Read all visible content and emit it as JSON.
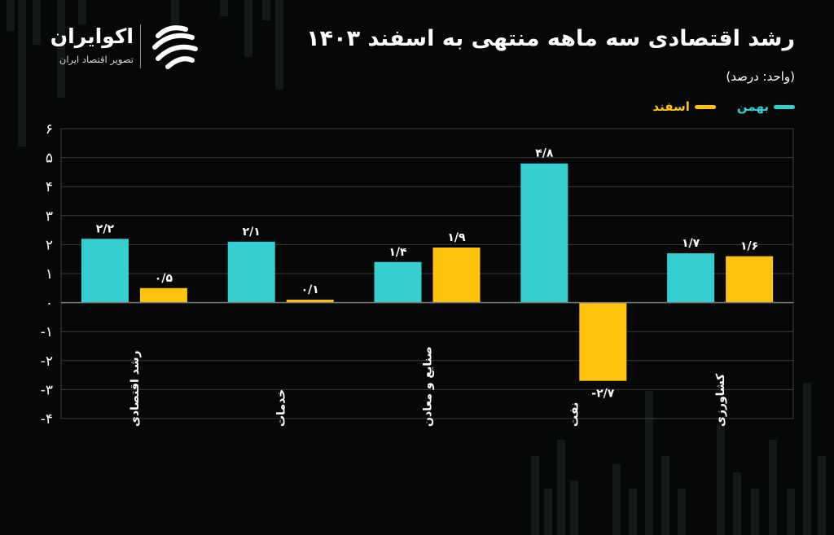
{
  "brand": {
    "name": "اکوایران",
    "tagline": "تصویر اقتصاد ایران"
  },
  "colors": {
    "series_bahman": "#35cfd1",
    "series_esfand": "#ffc20d",
    "gridline": "#3a3c3c",
    "axis_text": "#ffffff"
  },
  "chart_data": {
    "type": "bar",
    "title": "رشد اقتصادی سه ماهه منتهی به اسفند ۱۴۰۳",
    "unit_label": "(واحد: درصد)",
    "categories": [
      "رشد اقتصادی",
      "خدمات",
      "صنایع و معادن",
      "نفت",
      "کشاورزی"
    ],
    "series": [
      {
        "name": "بهمن",
        "values": [
          2.2,
          2.1,
          1.4,
          4.8,
          1.7
        ],
        "labels": [
          "۲/۲",
          "۲/۱",
          "۱/۴",
          "۴/۸",
          "۱/۷"
        ]
      },
      {
        "name": "اسفند",
        "values": [
          0.5,
          0.1,
          1.9,
          -2.7,
          1.6
        ],
        "labels": [
          "۰/۵",
          "۰/۱",
          "۱/۹",
          "-۲/۷",
          "۱/۶"
        ]
      }
    ],
    "y_ticks": [
      6,
      5,
      4,
      3,
      2,
      1,
      0,
      -1,
      -2,
      -3,
      -4
    ],
    "y_tick_labels": [
      "۶",
      "۵",
      "۴",
      "۳",
      "۲",
      "۱",
      "۰",
      "-۱",
      "-۲",
      "-۳",
      "-۴"
    ],
    "ylim": [
      -4,
      6
    ],
    "grid": true,
    "legend": "top-right"
  }
}
